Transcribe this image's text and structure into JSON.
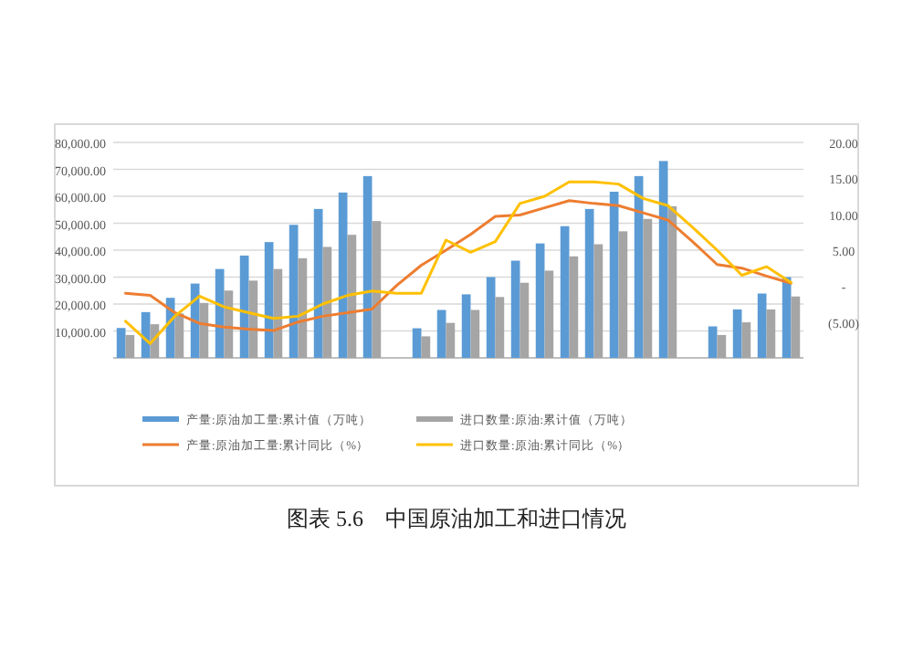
{
  "chart_data": {
    "type": "bar",
    "title": "图表 5.6　中国原油加工和进口情况",
    "categories": [
      null,
      null,
      null,
      null,
      null,
      null,
      null,
      null,
      null,
      null,
      null,
      null,
      null,
      null,
      null,
      null,
      null,
      null,
      null,
      null,
      null,
      null,
      null,
      null,
      null,
      null,
      null,
      null
    ],
    "series": [
      {
        "name": "产量:原油加工量:累计值（万吨）",
        "color": "#5b9bd5",
        "values": [
          11100,
          17000,
          22300,
          27600,
          33000,
          38000,
          43000,
          49400,
          55300,
          61400,
          67500,
          null,
          11000,
          17800,
          23600,
          30000,
          36100,
          42500,
          48900,
          55300,
          61700,
          67500,
          73100,
          null,
          11700,
          18000,
          23900,
          30000
        ]
      },
      {
        "name": "进口数量:原油:累计值（万吨）",
        "color": "#a5a5a5",
        "values": [
          8500,
          12500,
          16500,
          20400,
          25000,
          28700,
          33000,
          37000,
          41200,
          45700,
          50800,
          null,
          8000,
          13000,
          17800,
          22600,
          27900,
          32400,
          37700,
          42200,
          47000,
          51600,
          56300,
          null,
          8500,
          13200,
          18000,
          22800
        ]
      },
      {
        "name": "产量:原油加工量:累计同比（%）",
        "color": "#ed7d31",
        "type": "line",
        "axis": "y2",
        "values": [
          -1.0,
          -1.3,
          -3.7,
          -5.2,
          -5.7,
          -6.0,
          -6.2,
          -5.0,
          -4.2,
          -3.7,
          -3.2,
          0.1,
          2.9,
          5.0,
          7.2,
          9.7,
          9.9,
          10.9,
          11.9,
          11.5,
          11.2,
          10.2,
          9.2,
          6.2,
          3.0,
          2.5,
          1.4,
          0.4
        ]
      },
      {
        "name": "进口数量:原油:累计同比（%）",
        "color": "#ffc000",
        "type": "line",
        "axis": "y2",
        "values": [
          -4.9,
          -8.0,
          -4.2,
          -1.4,
          -2.9,
          -3.7,
          -4.5,
          -4.2,
          -2.5,
          -1.3,
          -0.7,
          -1.0,
          -1.0,
          6.4,
          4.7,
          6.2,
          11.5,
          12.5,
          14.5,
          14.5,
          14.2,
          12.2,
          11.2,
          8.2,
          5.0,
          1.5,
          2.7,
          0.5
        ]
      }
    ],
    "ylim": [
      0,
      80000
    ],
    "yticks": [
      {
        "value": 10000,
        "label": "10,000.00"
      },
      {
        "value": 20000,
        "label": "20,000.00"
      },
      {
        "value": 30000,
        "label": "30,000.00"
      },
      {
        "value": 40000,
        "label": "40,000.00"
      },
      {
        "value": 50000,
        "label": "50,000.00"
      },
      {
        "value": 60000,
        "label": "60,000.00"
      },
      {
        "value": 70000,
        "label": "70,000.00"
      },
      {
        "value": 80000,
        "label": "80,000.00"
      }
    ],
    "y2lim": [
      -10,
      20
    ],
    "y2ticks": [
      {
        "value": -5,
        "label": "(5.00)"
      },
      {
        "value": 0,
        "label": "-"
      },
      {
        "value": 5,
        "label": "5.00"
      },
      {
        "value": 10,
        "label": "10.00"
      },
      {
        "value": 15,
        "label": "15.00"
      },
      {
        "value": 20,
        "label": "20.00"
      }
    ],
    "grid": "y",
    "legend": "bottom",
    "marker": "none"
  }
}
